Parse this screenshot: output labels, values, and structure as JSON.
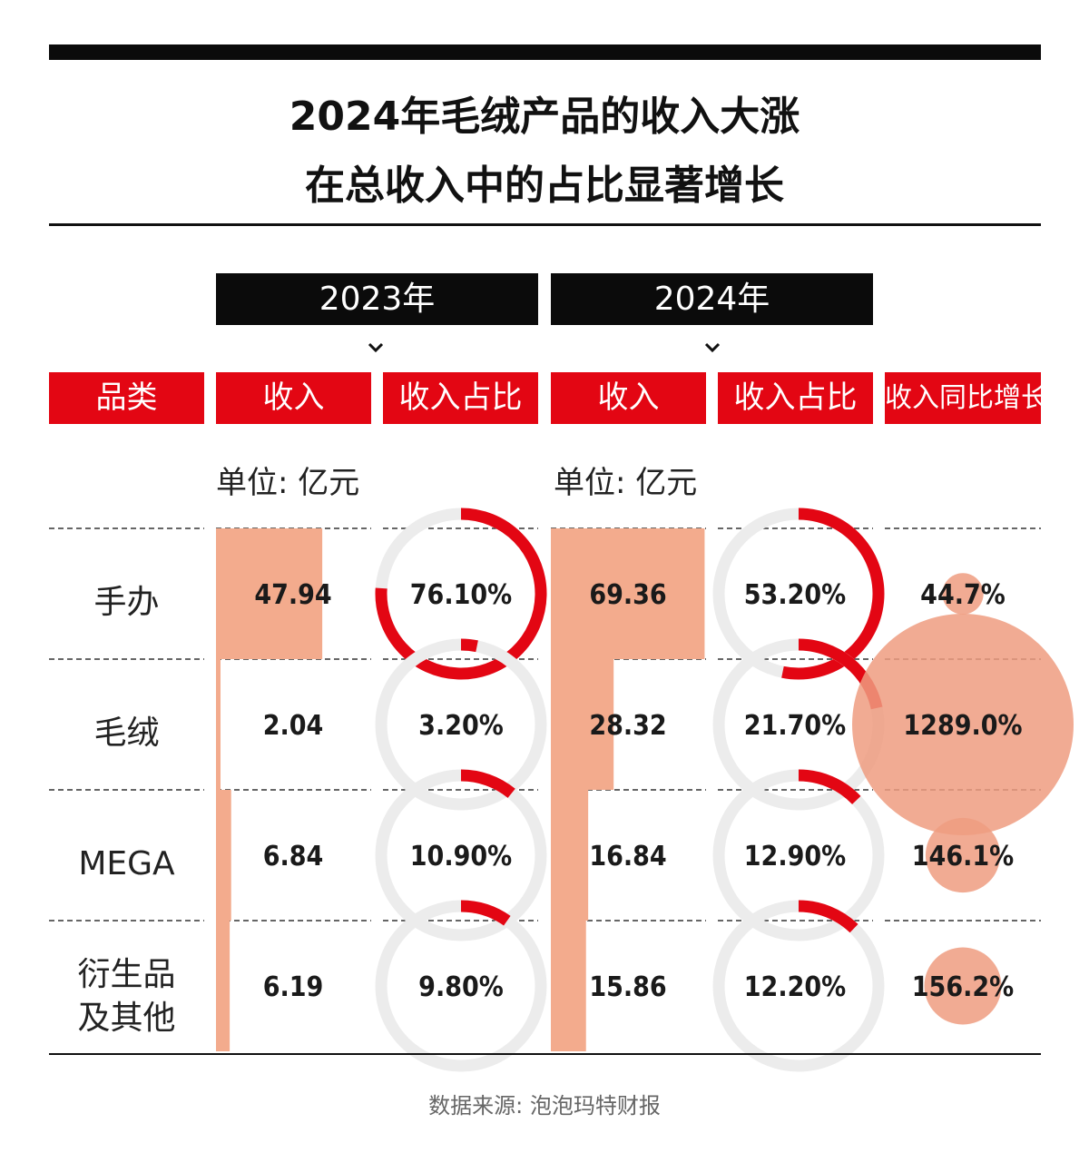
{
  "title": {
    "line1": "2024年毛绒产品的收入大涨",
    "line2": "在总收入中的占比显著增长"
  },
  "years": [
    "2023年",
    "2024年"
  ],
  "headers": {
    "category": "品类",
    "revenue_2023": "收入",
    "share_2023": "收入占比",
    "revenue_2024": "收入",
    "share_2024": "收入占比",
    "growth": "收入同比增长"
  },
  "unit_label": "单位: 亿元",
  "source": "数据来源: 泡泡玛特财报",
  "colors": {
    "accent_red": "#e30613",
    "bar_salmon": "#f3ab8d",
    "ring_gray": "#ececec",
    "bubble": "#ee9c80"
  },
  "chart_data": {
    "type": "table",
    "columns": [
      "品类",
      "2023年收入",
      "2023年收入占比",
      "2024年收入",
      "2024年收入占比",
      "收入同比增长"
    ],
    "rows": [
      {
        "category": "手办",
        "revenue_2023": 47.94,
        "revenue_2023_label": "47.94",
        "share_2023": 76.1,
        "share_2023_label": "76.10%",
        "revenue_2024": 69.36,
        "revenue_2024_label": "69.36",
        "share_2024": 53.2,
        "share_2024_label": "53.20%",
        "growth": 44.7,
        "growth_label": "44.7%"
      },
      {
        "category": "毛绒",
        "revenue_2023": 2.04,
        "revenue_2023_label": "2.04",
        "share_2023": 3.2,
        "share_2023_label": "3.20%",
        "revenue_2024": 28.32,
        "revenue_2024_label": "28.32",
        "share_2024": 21.7,
        "share_2024_label": "21.70%",
        "growth": 1289.0,
        "growth_label": "1289.0%"
      },
      {
        "category": "MEGA",
        "revenue_2023": 6.84,
        "revenue_2023_label": "6.84",
        "share_2023": 10.9,
        "share_2023_label": "10.90%",
        "revenue_2024": 16.84,
        "revenue_2024_label": "16.84",
        "share_2024": 12.9,
        "share_2024_label": "12.90%",
        "growth": 146.1,
        "growth_label": "146.1%"
      },
      {
        "category": "衍生品\n及其他",
        "revenue_2023": 6.19,
        "revenue_2023_label": "6.19",
        "share_2023": 9.8,
        "share_2023_label": "9.80%",
        "revenue_2024": 15.86,
        "revenue_2024_label": "15.86",
        "share_2024": 12.2,
        "share_2024_label": "12.20%",
        "growth": 156.2,
        "growth_label": "156.2%"
      }
    ]
  }
}
